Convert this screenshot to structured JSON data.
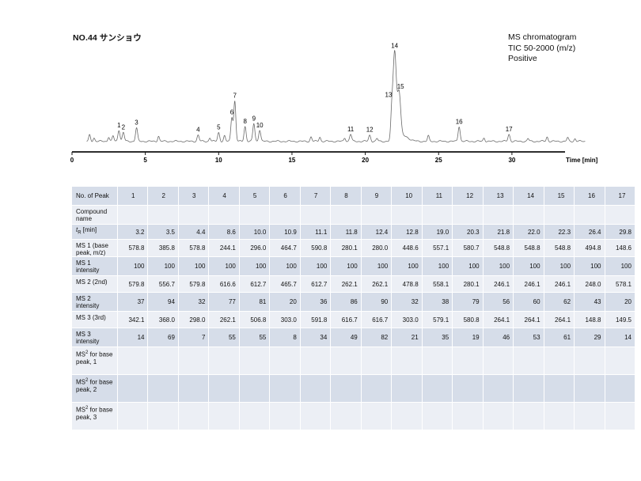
{
  "title": "NO.44 サンショウ",
  "info_lines": [
    "MS chromatogram",
    "TIC 50-2000 (m/z)",
    "Positive"
  ],
  "chart_data": {
    "type": "line",
    "title": "NO.44 サンショウ",
    "xlabel": "Time [min]",
    "ylabel": "",
    "xlim": [
      0,
      35
    ],
    "x_ticks": [
      0,
      5,
      10,
      15,
      20,
      25,
      30
    ],
    "grid": false,
    "baseline_noise_features": [
      {
        "x": 1.2,
        "h": 0.07
      },
      {
        "x": 1.5,
        "h": 0.04
      },
      {
        "x": 2.5,
        "h": 0.05
      },
      {
        "x": 2.8,
        "h": 0.06
      },
      {
        "x": 5.9,
        "h": 0.06
      },
      {
        "x": 9.4,
        "h": 0.04
      },
      {
        "x": 10.4,
        "h": 0.06
      },
      {
        "x": 16.3,
        "h": 0.05
      },
      {
        "x": 16.9,
        "h": 0.05
      },
      {
        "x": 18.6,
        "h": 0.04
      },
      {
        "x": 20.8,
        "h": 0.03
      },
      {
        "x": 24.3,
        "h": 0.06
      },
      {
        "x": 28.1,
        "h": 0.04
      },
      {
        "x": 31.1,
        "h": 0.03
      },
      {
        "x": 32.4,
        "h": 0.05
      },
      {
        "x": 33.8,
        "h": 0.04
      },
      {
        "x": 34.3,
        "h": 0.03
      }
    ],
    "peaks": [
      {
        "label": "1",
        "rt": 3.2,
        "height": 0.13
      },
      {
        "label": "2",
        "rt": 3.5,
        "height": 0.1
      },
      {
        "label": "3",
        "rt": 4.4,
        "height": 0.15
      },
      {
        "label": "4",
        "rt": 8.6,
        "height": 0.07
      },
      {
        "label": "5",
        "rt": 10.0,
        "height": 0.1
      },
      {
        "label": "6",
        "rt": 10.9,
        "height": 0.27
      },
      {
        "label": "7",
        "rt": 11.1,
        "height": 0.45
      },
      {
        "label": "8",
        "rt": 11.8,
        "height": 0.17
      },
      {
        "label": "9",
        "rt": 12.4,
        "height": 0.2
      },
      {
        "label": "10",
        "rt": 12.8,
        "height": 0.13
      },
      {
        "label": "11",
        "rt": 19.0,
        "height": 0.08
      },
      {
        "label": "12",
        "rt": 20.3,
        "height": 0.07
      },
      {
        "label": "13",
        "rt": 21.8,
        "height": 0.26
      },
      {
        "label": "14",
        "rt": 22.0,
        "height": 1.0
      },
      {
        "label": "15",
        "rt": 22.3,
        "height": 0.52
      },
      {
        "label": "16",
        "rt": 26.4,
        "height": 0.17
      },
      {
        "label": "17",
        "rt": 29.8,
        "height": 0.08
      }
    ]
  },
  "table": {
    "row_headers": [
      "No. of Peak",
      "Compound name",
      "tR [min]",
      "MS 1 (base peak, m/z)",
      "MS 1 intensity",
      "MS 2 (2nd)",
      "MS 2 intensity",
      "MS 3 (3rd)",
      "MS 3 intensity",
      "MS2 for base peak, 1",
      "MS2 for base peak, 2",
      "MS2 for base peak, 3"
    ],
    "peak_numbers": [
      "1",
      "2",
      "3",
      "4",
      "5",
      "6",
      "7",
      "8",
      "9",
      "10",
      "11",
      "12",
      "13",
      "14",
      "15",
      "16",
      "17"
    ],
    "compound_name": [
      "",
      "",
      "",
      "",
      "",
      "",
      "",
      "",
      "",
      "",
      "",
      "",
      "",
      "",
      "",
      "",
      ""
    ],
    "tr": [
      "3.2",
      "3.5",
      "4.4",
      "8.6",
      "10.0",
      "10.9",
      "11.1",
      "11.8",
      "12.4",
      "12.8",
      "19.0",
      "20.3",
      "21.8",
      "22.0",
      "22.3",
      "26.4",
      "29.8"
    ],
    "ms1": [
      "578.8",
      "385.8",
      "578.8",
      "244.1",
      "296.0",
      "464.7",
      "590.8",
      "280.1",
      "280.0",
      "448.6",
      "557.1",
      "580.7",
      "548.8",
      "548.8",
      "548.8",
      "494.8",
      "148.6"
    ],
    "ms1_int": [
      "100",
      "100",
      "100",
      "100",
      "100",
      "100",
      "100",
      "100",
      "100",
      "100",
      "100",
      "100",
      "100",
      "100",
      "100",
      "100",
      "100"
    ],
    "ms2": [
      "579.8",
      "556.7",
      "579.8",
      "616.6",
      "612.7",
      "465.7",
      "612.7",
      "262.1",
      "262.1",
      "478.8",
      "558.1",
      "280.1",
      "246.1",
      "246.1",
      "246.1",
      "248.0",
      "578.1"
    ],
    "ms2_int": [
      "37",
      "94",
      "32",
      "77",
      "81",
      "20",
      "36",
      "86",
      "90",
      "32",
      "38",
      "79",
      "56",
      "60",
      "62",
      "43",
      "20"
    ],
    "ms3": [
      "342.1",
      "368.0",
      "298.0",
      "262.1",
      "506.8",
      "303.0",
      "591.8",
      "616.7",
      "616.7",
      "303.0",
      "579.1",
      "580.8",
      "264.1",
      "264.1",
      "264.1",
      "148.8",
      "149.5"
    ],
    "ms3_int": [
      "14",
      "69",
      "7",
      "55",
      "55",
      "8",
      "34",
      "49",
      "82",
      "21",
      "35",
      "19",
      "46",
      "53",
      "61",
      "29",
      "14"
    ],
    "msms1": [
      "",
      "",
      "",
      "",
      "",
      "",
      "",
      "",
      "",
      "",
      "",
      "",
      "",
      "",
      "",
      "",
      ""
    ],
    "msms2": [
      "",
      "",
      "",
      "",
      "",
      "",
      "",
      "",
      "",
      "",
      "",
      "",
      "",
      "",
      "",
      "",
      ""
    ],
    "msms3": [
      "",
      "",
      "",
      "",
      "",
      "",
      "",
      "",
      "",
      "",
      "",
      "",
      "",
      "",
      "",
      "",
      ""
    ]
  }
}
